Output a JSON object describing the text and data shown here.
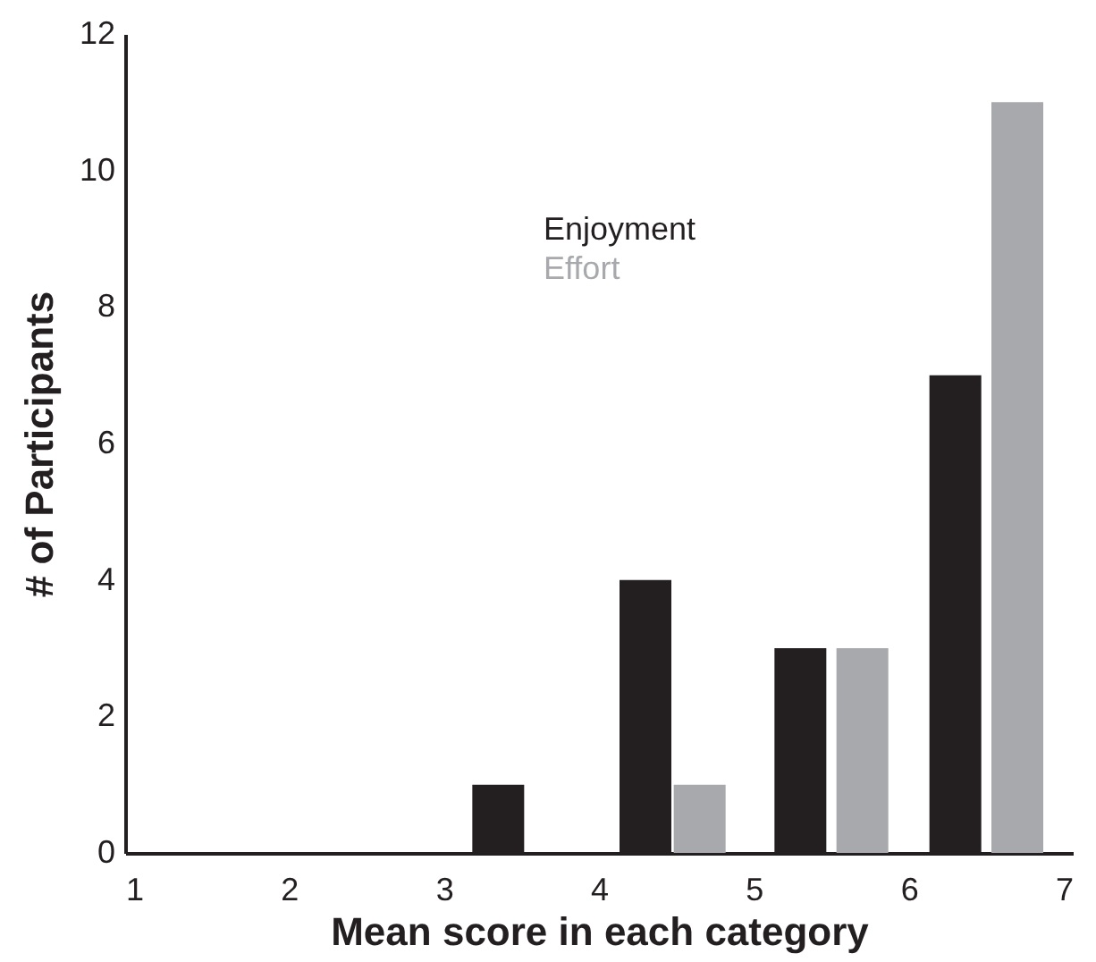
{
  "chart_data": {
    "type": "bar",
    "xlabel": "Mean score in each category",
    "ylabel": "# of Participants",
    "series": [
      {
        "name": "Enjoyment",
        "color": "#231f20",
        "x": [
          3.35,
          4.3,
          5.3,
          6.3
        ],
        "values": [
          1,
          4,
          3,
          7
        ]
      },
      {
        "name": "Effort",
        "color": "#a7a9ac",
        "x": [
          4.65,
          5.7,
          6.7
        ],
        "values": [
          1,
          3,
          11
        ]
      }
    ],
    "xlim": [
      1,
      7
    ],
    "xticks": [
      1,
      2,
      3,
      4,
      5,
      6,
      7
    ],
    "ylim": [
      0,
      12
    ],
    "yticks": [
      0,
      2,
      4,
      6,
      8,
      10,
      12
    ],
    "grid": false,
    "legend": "top"
  }
}
